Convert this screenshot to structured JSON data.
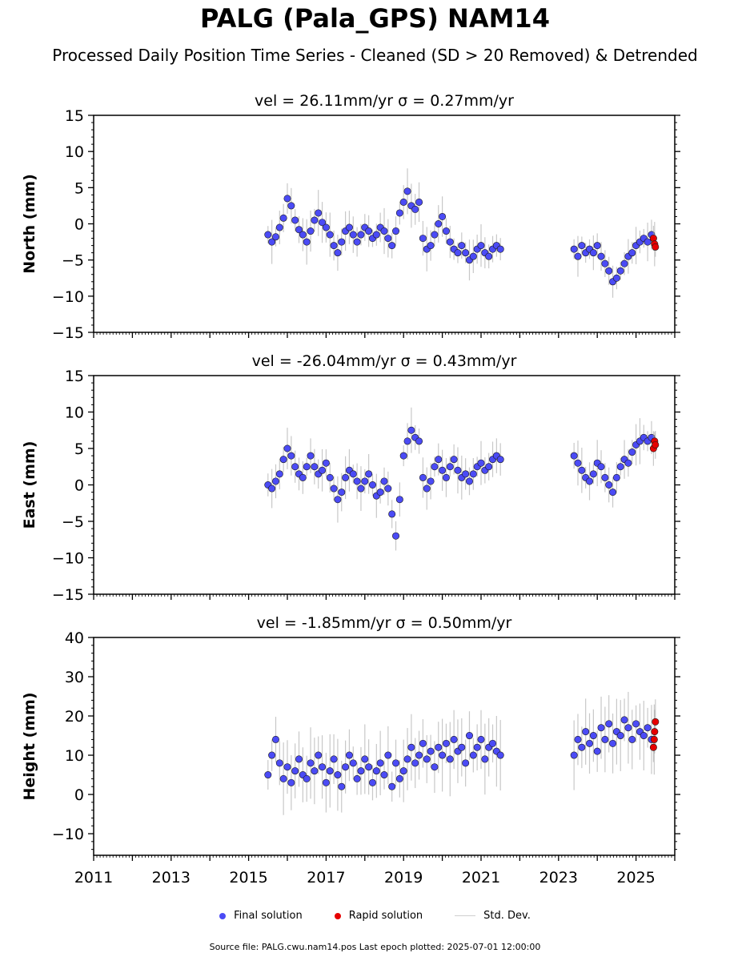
{
  "figure": {
    "title": "PALG (Pala_GPS) NAM14",
    "subtitle": "Processed Daily Position Time Series - Cleaned (SD > 20 Removed) & Detrended",
    "footer": "Source file: PALG.cwu.nam14.pos  Last epoch plotted: 2025-07-01 12:00:00"
  },
  "legend": {
    "final_label": "Final solution",
    "rapid_label": "Rapid solution",
    "stddev_label": "Std. Dev."
  },
  "colors": {
    "final": "#4b4bf5",
    "rapid": "#e60000",
    "stddev": "#9a9a9a",
    "marker_edge": "#1a1a1a"
  },
  "chart_data": [
    {
      "type": "scatter",
      "title": "vel = 26.11mm/yr   σ = 0.27mm/yr",
      "ylabel": "North (mm)",
      "xlim": [
        2011,
        2026
      ],
      "ylim": [
        -15,
        15
      ],
      "yticks": [
        -15,
        -10,
        -5,
        0,
        5,
        10,
        15
      ],
      "xticks": [
        2011,
        2013,
        2015,
        2017,
        2019,
        2021,
        2023,
        2025
      ],
      "xticklabels": [],
      "series": [
        {
          "name": "Final solution",
          "x": [
            2015.5,
            2015.6,
            2015.7,
            2015.8,
            2015.9,
            2016.0,
            2016.1,
            2016.2,
            2016.3,
            2016.4,
            2016.5,
            2016.6,
            2016.7,
            2016.8,
            2016.9,
            2017.0,
            2017.1,
            2017.2,
            2017.3,
            2017.4,
            2017.5,
            2017.6,
            2017.7,
            2017.8,
            2017.9,
            2018.0,
            2018.1,
            2018.2,
            2018.3,
            2018.4,
            2018.5,
            2018.6,
            2018.7,
            2018.8,
            2018.9,
            2019.0,
            2019.1,
            2019.2,
            2019.3,
            2019.4,
            2019.5,
            2019.6,
            2019.7,
            2019.8,
            2019.9,
            2020.0,
            2020.1,
            2020.2,
            2020.3,
            2020.4,
            2020.5,
            2020.6,
            2020.7,
            2020.8,
            2020.9,
            2021.0,
            2021.1,
            2021.2,
            2021.3,
            2021.4,
            2021.5,
            2023.4,
            2023.5,
            2023.6,
            2023.7,
            2023.8,
            2023.9,
            2024.0,
            2024.1,
            2024.2,
            2024.3,
            2024.4,
            2024.5,
            2024.6,
            2024.7,
            2024.8,
            2024.9,
            2025.0,
            2025.1,
            2025.2,
            2025.3,
            2025.4
          ],
          "y": [
            -1.5,
            -2.5,
            -1.8,
            -0.5,
            0.8,
            3.5,
            2.5,
            0.5,
            -0.8,
            -1.5,
            -2.5,
            -1.0,
            0.5,
            1.5,
            0.2,
            -0.5,
            -1.5,
            -3.0,
            -4.0,
            -2.5,
            -1.0,
            -0.5,
            -1.5,
            -2.5,
            -1.5,
            -0.5,
            -1.0,
            -2.0,
            -1.5,
            -0.5,
            -1.0,
            -2.0,
            -3.0,
            -1.0,
            1.5,
            3.0,
            4.5,
            2.5,
            2.0,
            3.0,
            -2.0,
            -3.5,
            -3.0,
            -1.5,
            0.0,
            1.0,
            -1.0,
            -2.5,
            -3.5,
            -4.0,
            -3.0,
            -4.0,
            -5.0,
            -4.5,
            -3.5,
            -3.0,
            -4.0,
            -4.5,
            -3.5,
            -3.0,
            -3.5,
            -3.5,
            -4.5,
            -3.0,
            -4.0,
            -3.5,
            -4.0,
            -3.0,
            -4.5,
            -5.5,
            -6.5,
            -8.0,
            -7.5,
            -6.5,
            -5.5,
            -4.5,
            -4.0,
            -3.0,
            -2.5,
            -2.0,
            -2.5,
            -1.5
          ]
        },
        {
          "name": "Rapid solution",
          "x": [
            2025.45,
            2025.48,
            2025.5
          ],
          "y": [
            -2.0,
            -2.8,
            -3.2
          ]
        }
      ]
    },
    {
      "type": "scatter",
      "title": "vel = -26.04mm/yr   σ = 0.43mm/yr",
      "ylabel": "East (mm)",
      "xlim": [
        2011,
        2026
      ],
      "ylim": [
        -15,
        15
      ],
      "yticks": [
        -15,
        -10,
        -5,
        0,
        5,
        10,
        15
      ],
      "xticks": [
        2011,
        2013,
        2015,
        2017,
        2019,
        2021,
        2023,
        2025
      ],
      "xticklabels": [],
      "series": [
        {
          "name": "Final solution",
          "x": [
            2015.5,
            2015.6,
            2015.7,
            2015.8,
            2015.9,
            2016.0,
            2016.1,
            2016.2,
            2016.3,
            2016.4,
            2016.5,
            2016.6,
            2016.7,
            2016.8,
            2016.9,
            2017.0,
            2017.1,
            2017.2,
            2017.3,
            2017.4,
            2017.5,
            2017.6,
            2017.7,
            2017.8,
            2017.9,
            2018.0,
            2018.1,
            2018.2,
            2018.3,
            2018.4,
            2018.5,
            2018.6,
            2018.7,
            2018.8,
            2018.9,
            2019.0,
            2019.1,
            2019.2,
            2019.3,
            2019.4,
            2019.5,
            2019.6,
            2019.7,
            2019.8,
            2019.9,
            2020.0,
            2020.1,
            2020.2,
            2020.3,
            2020.4,
            2020.5,
            2020.6,
            2020.7,
            2020.8,
            2020.9,
            2021.0,
            2021.1,
            2021.2,
            2021.3,
            2021.4,
            2021.5,
            2023.4,
            2023.5,
            2023.6,
            2023.7,
            2023.8,
            2023.9,
            2024.0,
            2024.1,
            2024.2,
            2024.3,
            2024.4,
            2024.5,
            2024.6,
            2024.7,
            2024.8,
            2024.9,
            2025.0,
            2025.1,
            2025.2,
            2025.3,
            2025.4
          ],
          "y": [
            0.0,
            -0.5,
            0.5,
            1.5,
            3.5,
            5.0,
            4.0,
            2.5,
            1.5,
            1.0,
            2.5,
            4.0,
            2.5,
            1.5,
            2.0,
            3.0,
            1.0,
            -0.5,
            -2.0,
            -1.0,
            1.0,
            2.0,
            1.5,
            0.5,
            -0.5,
            0.5,
            1.5,
            0.0,
            -1.5,
            -1.0,
            0.5,
            -0.5,
            -4.0,
            -7.0,
            -2.0,
            4.0,
            6.0,
            7.5,
            6.5,
            6.0,
            1.0,
            -0.5,
            0.5,
            2.5,
            3.5,
            2.0,
            1.0,
            2.5,
            3.5,
            2.0,
            1.0,
            1.5,
            0.5,
            1.5,
            2.5,
            3.0,
            2.0,
            2.5,
            3.5,
            4.0,
            3.5,
            4.0,
            3.0,
            2.0,
            1.0,
            0.5,
            1.5,
            3.0,
            2.5,
            1.0,
            0.0,
            -1.0,
            1.0,
            2.5,
            3.5,
            3.0,
            4.5,
            5.5,
            6.0,
            6.5,
            6.0,
            6.5
          ]
        },
        {
          "name": "Rapid solution",
          "x": [
            2025.45,
            2025.48,
            2025.5
          ],
          "y": [
            5.0,
            6.0,
            5.5
          ]
        }
      ]
    },
    {
      "type": "scatter",
      "title": "vel = -1.85mm/yr   σ = 0.50mm/yr",
      "ylabel": "Height (mm)",
      "xlim": [
        2011,
        2026
      ],
      "ylim": [
        -15.5,
        40
      ],
      "yticks": [
        -10,
        0,
        10,
        20,
        30,
        40
      ],
      "xticks": [
        2011,
        2013,
        2015,
        2017,
        2019,
        2021,
        2023,
        2025
      ],
      "xticklabels": [
        "2011",
        "2013",
        "2015",
        "2017",
        "2019",
        "2021",
        "2023",
        "2025"
      ],
      "series": [
        {
          "name": "Final solution",
          "x": [
            2015.5,
            2015.6,
            2015.7,
            2015.8,
            2015.9,
            2016.0,
            2016.1,
            2016.2,
            2016.3,
            2016.4,
            2016.5,
            2016.6,
            2016.7,
            2016.8,
            2016.9,
            2017.0,
            2017.1,
            2017.2,
            2017.3,
            2017.4,
            2017.5,
            2017.6,
            2017.7,
            2017.8,
            2017.9,
            2018.0,
            2018.1,
            2018.2,
            2018.3,
            2018.4,
            2018.5,
            2018.6,
            2018.7,
            2018.8,
            2018.9,
            2019.0,
            2019.1,
            2019.2,
            2019.3,
            2019.4,
            2019.5,
            2019.6,
            2019.7,
            2019.8,
            2019.9,
            2020.0,
            2020.1,
            2020.2,
            2020.3,
            2020.4,
            2020.5,
            2020.6,
            2020.7,
            2020.8,
            2020.9,
            2021.0,
            2021.1,
            2021.2,
            2021.3,
            2021.4,
            2021.5,
            2023.4,
            2023.5,
            2023.6,
            2023.7,
            2023.8,
            2023.9,
            2024.0,
            2024.1,
            2024.2,
            2024.3,
            2024.4,
            2024.5,
            2024.6,
            2024.7,
            2024.8,
            2024.9,
            2025.0,
            2025.1,
            2025.2,
            2025.3,
            2025.4
          ],
          "y": [
            5.0,
            10.0,
            14.0,
            8.0,
            4.0,
            7.0,
            3.0,
            6.0,
            9.0,
            5.0,
            4.0,
            8.0,
            6.0,
            10.0,
            7.0,
            3.0,
            6.0,
            9.0,
            5.0,
            2.0,
            7.0,
            10.0,
            8.0,
            4.0,
            6.0,
            9.0,
            7.0,
            3.0,
            6.0,
            8.0,
            5.0,
            10.0,
            2.0,
            8.0,
            4.0,
            6.0,
            9.0,
            12.0,
            8.0,
            10.0,
            13.0,
            9.0,
            11.0,
            7.0,
            12.0,
            10.0,
            13.0,
            9.0,
            14.0,
            11.0,
            12.0,
            8.0,
            15.0,
            10.0,
            12.0,
            14.0,
            9.0,
            12.0,
            13.0,
            11.0,
            10.0,
            10.0,
            14.0,
            12.0,
            16.0,
            13.0,
            15.0,
            11.0,
            17.0,
            14.0,
            18.0,
            13.0,
            16.0,
            15.0,
            19.0,
            17.0,
            14.0,
            18.0,
            16.0,
            15.0,
            17.0,
            14.0
          ]
        },
        {
          "name": "Rapid solution",
          "x": [
            2025.45,
            2025.48,
            2025.5,
            2025.47
          ],
          "y": [
            12.0,
            16.0,
            18.5,
            14.0
          ]
        }
      ]
    }
  ]
}
